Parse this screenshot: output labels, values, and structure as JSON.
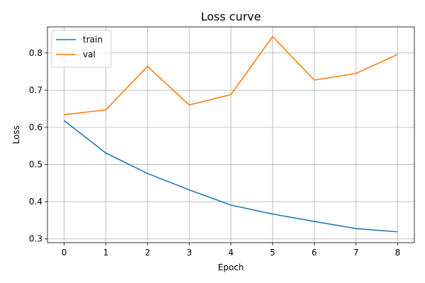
{
  "chart_data": {
    "type": "line",
    "title": "Loss curve",
    "xlabel": "Epoch",
    "ylabel": "Loss",
    "x": [
      0,
      1,
      2,
      3,
      4,
      5,
      6,
      7,
      8
    ],
    "xlim": [
      -0.4,
      8.4
    ],
    "ylim": [
      0.29,
      0.87
    ],
    "xticks": [
      0,
      1,
      2,
      3,
      4,
      5,
      6,
      7,
      8
    ],
    "yticks": [
      0.3,
      0.4,
      0.5,
      0.6,
      0.7,
      0.8
    ],
    "grid": true,
    "legend_position": "top-left",
    "series": [
      {
        "name": "train",
        "color": "#1f77b4",
        "values": [
          0.618,
          0.531,
          0.476,
          0.432,
          0.391,
          0.367,
          0.347,
          0.328,
          0.319
        ]
      },
      {
        "name": "val",
        "color": "#ff7f0e",
        "values": [
          0.634,
          0.647,
          0.764,
          0.66,
          0.688,
          0.844,
          0.727,
          0.745,
          0.796
        ]
      }
    ]
  }
}
